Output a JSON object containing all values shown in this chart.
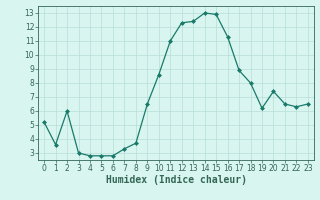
{
  "x": [
    0,
    1,
    2,
    3,
    4,
    5,
    6,
    7,
    8,
    9,
    10,
    11,
    12,
    13,
    14,
    15,
    16,
    17,
    18,
    19,
    20,
    21,
    22,
    23
  ],
  "y": [
    5.2,
    3.6,
    6.0,
    3.0,
    2.8,
    2.8,
    2.8,
    3.3,
    3.7,
    6.5,
    8.6,
    11.0,
    12.3,
    12.4,
    13.0,
    12.9,
    11.3,
    8.9,
    8.0,
    6.2,
    7.4,
    6.5,
    6.3,
    6.5
  ],
  "line_color": "#1a7a6a",
  "marker": "D",
  "marker_size": 2.0,
  "xlabel": "Humidex (Indice chaleur)",
  "bg_color": "#d8f5f0",
  "grid_color": "#b8ddd8",
  "ylim": [
    2.5,
    13.5
  ],
  "xlim": [
    -0.5,
    23.5
  ],
  "yticks": [
    3,
    4,
    5,
    6,
    7,
    8,
    9,
    10,
    11,
    12,
    13
  ],
  "xticks": [
    0,
    1,
    2,
    3,
    4,
    5,
    6,
    7,
    8,
    9,
    10,
    11,
    12,
    13,
    14,
    15,
    16,
    17,
    18,
    19,
    20,
    21,
    22,
    23
  ],
  "tick_fontsize": 5.5,
  "xlabel_fontsize": 7.0,
  "spine_color": "#336655",
  "tick_color": "#336655"
}
